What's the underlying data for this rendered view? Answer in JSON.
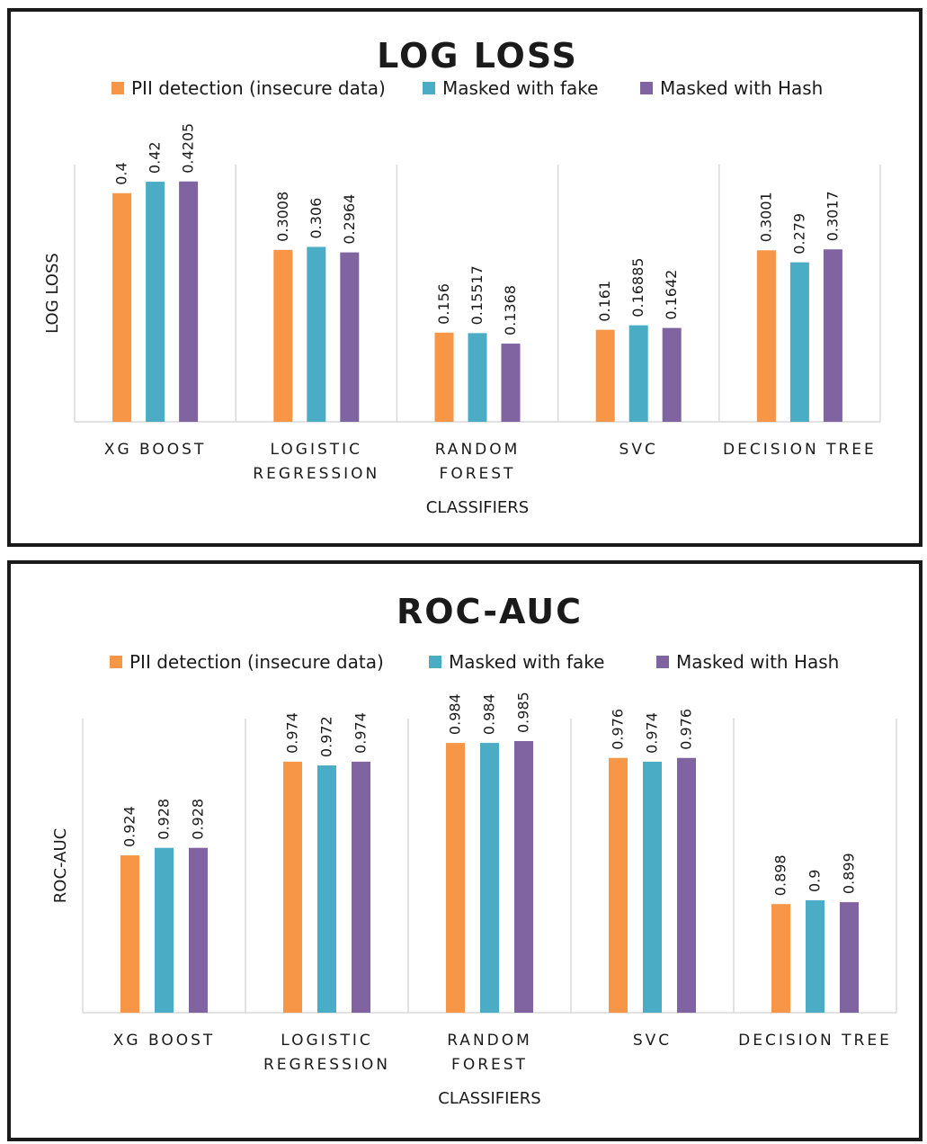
{
  "colors": {
    "PII detection (insecure data)": "#f79646",
    "Masked with fake": "#4bacc6",
    "Masked with Hash": "#8064a2"
  },
  "chart_data": [
    {
      "type": "bar",
      "title": "LOG LOSS",
      "xlabel": "CLASSIFIERS",
      "ylabel": "LOG LOSS",
      "ylim": [
        0,
        0.45
      ],
      "grid": "vertical separators",
      "legend_position": "top",
      "categories": [
        [
          "XG BOOST"
        ],
        [
          "LOGISTIC",
          "REGRESSION"
        ],
        [
          "RANDOM",
          "FOREST"
        ],
        [
          "SVC"
        ],
        [
          "DECISION TREE"
        ]
      ],
      "series": [
        {
          "name": "PII detection (insecure data)",
          "values": [
            0.4,
            0.3008,
            0.156,
            0.161,
            0.3001
          ],
          "labels": [
            "0.4",
            "0.3008",
            "0.156",
            "0.161",
            "0.3001"
          ]
        },
        {
          "name": "Masked with fake",
          "values": [
            0.42,
            0.306,
            0.15517,
            0.16885,
            0.279
          ],
          "labels": [
            "0.42",
            "0.306",
            "0.15517",
            "0.16885",
            "0.279"
          ]
        },
        {
          "name": "Masked with Hash",
          "values": [
            0.4205,
            0.2964,
            0.1368,
            0.1642,
            0.3017
          ],
          "labels": [
            "0.4205",
            "0.2964",
            "0.1368",
            "0.1642",
            "0.3017"
          ]
        }
      ]
    },
    {
      "type": "bar",
      "title": "ROC-AUC",
      "xlabel": "CLASSIFIERS",
      "ylabel": "ROC-AUC",
      "ylim": [
        0.84,
        0.997
      ],
      "grid": "vertical separators",
      "legend_position": "top",
      "categories": [
        [
          "XG BOOST"
        ],
        [
          "LOGISTIC",
          "REGRESSION"
        ],
        [
          "RANDOM",
          "FOREST"
        ],
        [
          "SVC"
        ],
        [
          "DECISION TREE"
        ]
      ],
      "series": [
        {
          "name": "PII detection (insecure data)",
          "values": [
            0.924,
            0.974,
            0.984,
            0.976,
            0.898
          ],
          "labels": [
            "0.924",
            "0.974",
            "0.984",
            "0.976",
            "0.898"
          ]
        },
        {
          "name": "Masked with fake",
          "values": [
            0.928,
            0.972,
            0.984,
            0.974,
            0.9
          ],
          "labels": [
            "0.928",
            "0.972",
            "0.984",
            "0.974",
            "0.9"
          ]
        },
        {
          "name": "Masked with Hash",
          "values": [
            0.928,
            0.974,
            0.985,
            0.976,
            0.899
          ],
          "labels": [
            "0.928",
            "0.974",
            "0.985",
            "0.976",
            "0.899"
          ]
        }
      ]
    }
  ]
}
